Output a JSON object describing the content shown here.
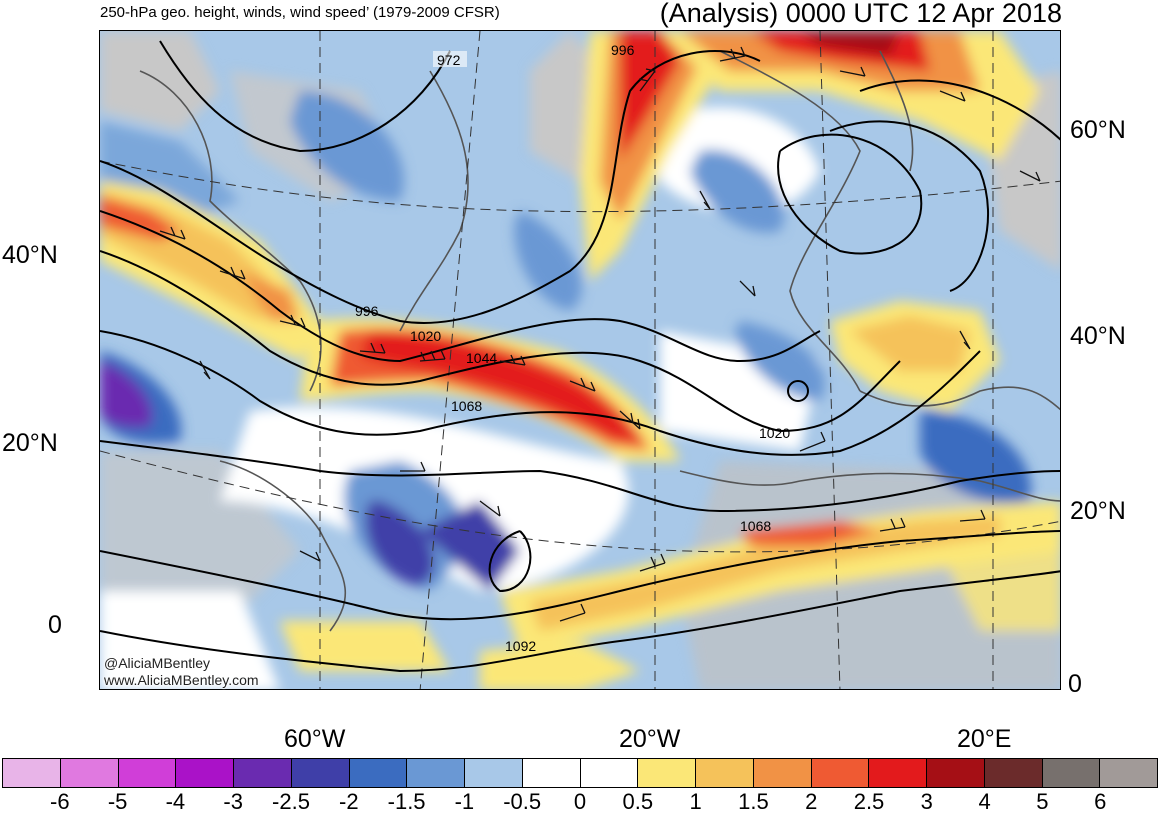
{
  "header": {
    "left_title": "250-hPa geo. height, winds, wind speed’ (1979-2009 CFSR)",
    "right_title": "(Analysis) 0000 UTC 12 Apr 2018"
  },
  "map": {
    "lat_labels_left": [
      "40°N",
      "20°N",
      "0"
    ],
    "lat_labels_right": [
      "60°N",
      "40°N",
      "20°N",
      "0"
    ],
    "lon_labels": [
      "60°W",
      "20°W",
      "20°E"
    ],
    "contour_labels": [
      "972",
      "996",
      "996",
      "1020",
      "1044",
      "1068",
      "1020",
      "1068",
      "1092"
    ],
    "credit_lines": [
      "@AliciaMBentley",
      "www.AliciaMBentley.com"
    ]
  },
  "colorbar": {
    "colors": [
      "#e8b4e8",
      "#e079e0",
      "#d03ed8",
      "#aa12c8",
      "#6a2bb0",
      "#3f3fa8",
      "#3b6cc0",
      "#6a98d4",
      "#a8c8e8",
      "#ffffff",
      "#ffffff",
      "#fbe777",
      "#f5c25a",
      "#f19245",
      "#ef5a33",
      "#e31a1c",
      "#a50f15",
      "#6b2b2b",
      "#77706d",
      "#a19a98"
    ],
    "labels": [
      "-6",
      "-5",
      "-4",
      "-3",
      "-2.5",
      "-2",
      "-1.5",
      "-1",
      "-0.5",
      "0",
      "0.5",
      "1",
      "1.5",
      "2",
      "2.5",
      "3",
      "4",
      "5",
      "6"
    ]
  }
}
